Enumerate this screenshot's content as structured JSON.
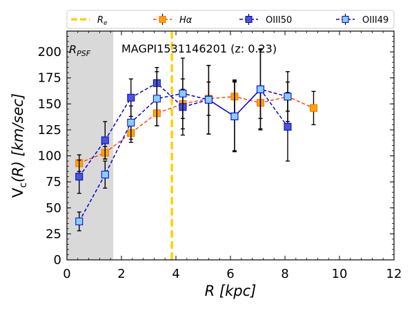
{
  "chart_data": {
    "type": "line",
    "title": "MAGPI1531146201 (z: 0.23)",
    "xlabel_symbol": "R",
    "xlabel_unit": "[kpc]",
    "ylabel_symbol": "V",
    "ylabel_subscript": "c",
    "ylabel_arg": "(R)",
    "ylabel_unit": "[km/sec]",
    "xlim": [
      0,
      12
    ],
    "ylim": [
      0,
      220
    ],
    "xticks": [
      0,
      2,
      4,
      6,
      8,
      10,
      12
    ],
    "yticks": [
      0,
      25,
      50,
      75,
      100,
      125,
      150,
      175,
      200
    ],
    "psf_region": {
      "x0": 0,
      "x1": 1.7,
      "label_main": "R",
      "label_sub": "PSF",
      "color": "#d9d9d9"
    },
    "effective_radius": {
      "x": 3.85,
      "label_main": "R",
      "label_sub": "e",
      "color": "#ffd000"
    },
    "legend_position": "top",
    "series": [
      {
        "name": "Hα",
        "line_color": "#ff4500",
        "marker_fill": "#ffa500",
        "marker_edge": "#ff6a00",
        "x": [
          0.45,
          1.4,
          2.35,
          3.3,
          4.25,
          5.2,
          6.15,
          7.1,
          8.1,
          9.05
        ],
        "y": [
          93,
          103,
          122,
          141,
          150,
          155,
          157,
          151,
          157,
          146
        ],
        "err": [
          8,
          6,
          9,
          12,
          14,
          16,
          16,
          15,
          14,
          16
        ]
      },
      {
        "name": "OIII50",
        "line_color": "#0000cd",
        "marker_fill": "#4a55d9",
        "marker_edge": "#0000cd",
        "x": [
          0.45,
          1.4,
          2.35,
          3.3,
          4.25,
          5.2,
          6.15,
          7.1,
          8.1
        ],
        "y": [
          80,
          115,
          156,
          170,
          147,
          154,
          138,
          164,
          128
        ],
        "err": [
          16,
          18,
          18,
          15,
          27,
          33,
          34,
          39,
          33
        ]
      },
      {
        "name": "OIII49",
        "line_color": "#0000cd",
        "marker_fill": "#87cefa",
        "marker_edge": "#0000cd",
        "x": [
          0.45,
          1.4,
          2.35,
          3.3,
          4.25,
          5.2,
          6.15,
          7.1,
          8.1
        ],
        "y": [
          37,
          82,
          132,
          155,
          160,
          154,
          138,
          164,
          157
        ],
        "err": [
          9,
          13,
          16,
          26,
          34,
          33,
          33,
          38,
          24
        ]
      }
    ]
  }
}
